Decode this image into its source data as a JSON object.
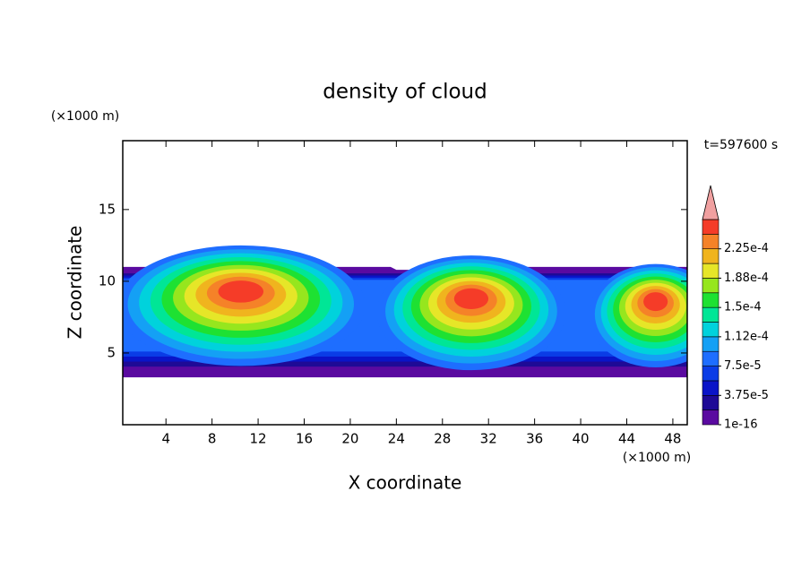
{
  "chart_data": {
    "type": "contour",
    "title": "density of cloud",
    "time_label": "t=597600 s",
    "x_label": "X coordinate",
    "y_label": "Z coordinate",
    "x_unit": "(×1000 m)",
    "y_unit": "(×1000 m)",
    "xlim": [
      0.25,
      49.25
    ],
    "ylim": [
      0,
      19.8
    ],
    "xticks": [
      4,
      8,
      12,
      16,
      20,
      24,
      28,
      32,
      36,
      40,
      44,
      48
    ],
    "yticks": [
      5,
      10,
      15
    ],
    "colorbar": {
      "clim": [
        0,
        0.0002625
      ],
      "ticks": [
        {
          "value": 0,
          "label": "1e-16"
        },
        {
          "value": 3.75e-05,
          "label": "3.75e-5"
        },
        {
          "value": 7.5e-05,
          "label": "7.5e-5"
        },
        {
          "value": 0.0001125,
          "label": "1.12e-4"
        },
        {
          "value": 0.00015,
          "label": "1.5e-4"
        },
        {
          "value": 0.0001875,
          "label": "1.88e-4"
        },
        {
          "value": 0.000225,
          "label": "2.25e-4"
        }
      ],
      "colors": [
        "#5a0aa0",
        "#1e0a96",
        "#0a14c8",
        "#0a3ce6",
        "#1e6eff",
        "#14a0f5",
        "#00d2dc",
        "#00e696",
        "#1ee132",
        "#96e61e",
        "#e6e628",
        "#f0b41e",
        "#f58228",
        "#f53c28"
      ],
      "over_color": "#f0a0a0"
    }
  }
}
